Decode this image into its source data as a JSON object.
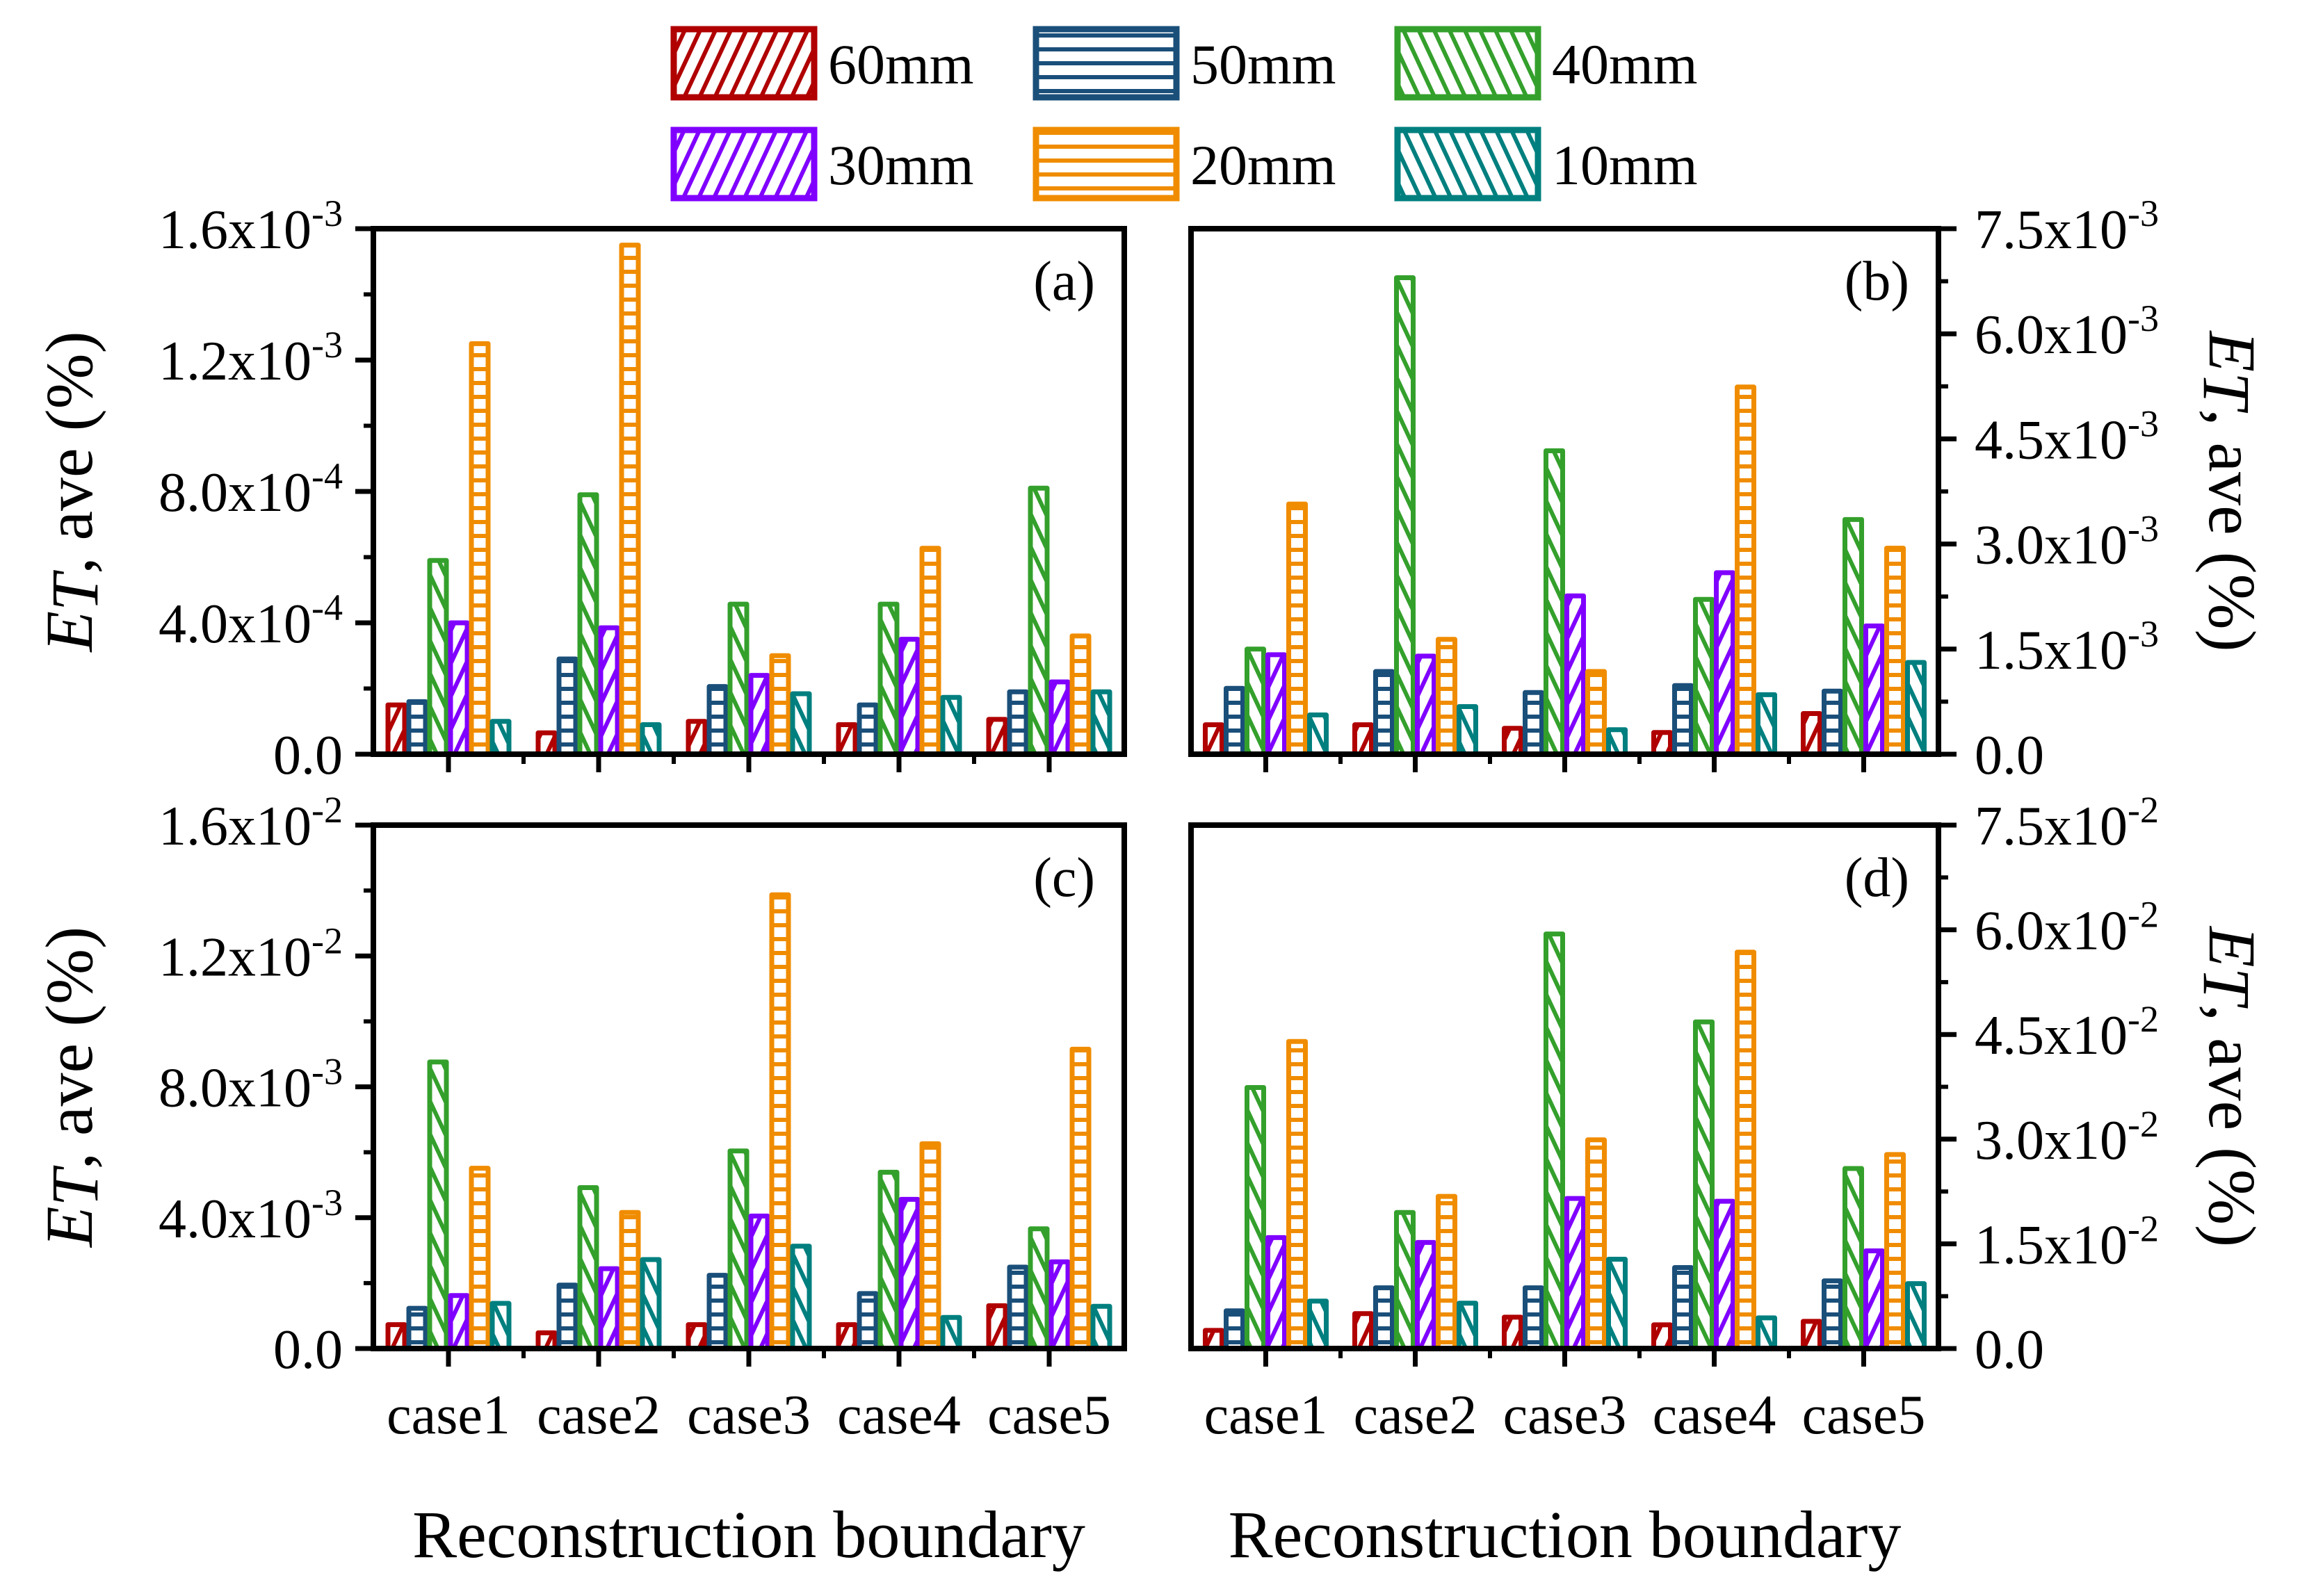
{
  "legend": [
    {
      "label": "60mm",
      "color": "#B00000",
      "pattern": "diag-up"
    },
    {
      "label": "50mm",
      "color": "#1A4F7A",
      "pattern": "horizontal"
    },
    {
      "label": "40mm",
      "color": "#34A02C",
      "pattern": "diag-down"
    },
    {
      "label": "30mm",
      "color": "#8000FF",
      "pattern": "diag-up"
    },
    {
      "label": "20mm",
      "color": "#F08C00",
      "pattern": "horizontal"
    },
    {
      "label": "10mm",
      "color": "#007F7F",
      "pattern": "diag-down"
    }
  ],
  "chart_data": [
    {
      "type": "bar",
      "panel": "(a)",
      "axis_side": "left",
      "categories": [
        "case1",
        "case2",
        "case3",
        "case4",
        "case5"
      ],
      "xlabel": "",
      "ylabel": {
        "e": "E",
        "t": "T",
        "rest": ", ave (%)"
      },
      "ylim": [
        0,
        0.0016
      ],
      "yticks": [
        {
          "value": 0,
          "text": "0.0",
          "exp": ""
        },
        {
          "value": 0.0004,
          "text": "4.0x10",
          "exp": "-4"
        },
        {
          "value": 0.0008,
          "text": "8.0x10",
          "exp": "-4"
        },
        {
          "value": 0.0012,
          "text": "1.2x10",
          "exp": "-3"
        },
        {
          "value": 0.0016,
          "text": "1.6x10",
          "exp": "-3"
        }
      ],
      "series": [
        {
          "name": "60mm",
          "values": [
            0.00015,
            6.5e-05,
            0.0001,
            9e-05,
            0.000106
          ]
        },
        {
          "name": "50mm",
          "values": [
            0.00016,
            0.00029,
            0.000206,
            0.00015,
            0.00019
          ]
        },
        {
          "name": "40mm",
          "values": [
            0.00059,
            0.00079,
            0.000457,
            0.000457,
            0.00081
          ]
        },
        {
          "name": "30mm",
          "values": [
            0.0004,
            0.000385,
            0.00024,
            0.00035,
            0.00022
          ]
        },
        {
          "name": "20mm",
          "values": [
            0.00125,
            0.00155,
            0.0003,
            0.000627,
            0.00036
          ]
        },
        {
          "name": "10mm",
          "values": [
            0.0001,
            9e-05,
            0.000184,
            0.000173,
            0.00019
          ]
        }
      ]
    },
    {
      "type": "bar",
      "panel": "(b)",
      "axis_side": "right",
      "categories": [
        "case1",
        "case2",
        "case3",
        "case4",
        "case5"
      ],
      "xlabel": "",
      "ylabel": {
        "e": "E",
        "t": "T",
        "rest": ", ave (%)"
      },
      "ylim": [
        0,
        0.0075
      ],
      "yticks": [
        {
          "value": 0,
          "text": "0.0",
          "exp": ""
        },
        {
          "value": 0.0015,
          "text": "1.5x10",
          "exp": "-3"
        },
        {
          "value": 0.003,
          "text": "3.0x10",
          "exp": "-3"
        },
        {
          "value": 0.0045,
          "text": "4.5x10",
          "exp": "-3"
        },
        {
          "value": 0.006,
          "text": "6.0x10",
          "exp": "-3"
        },
        {
          "value": 0.0075,
          "text": "7.5x10",
          "exp": "-3"
        }
      ],
      "series": [
        {
          "name": "60mm",
          "values": [
            0.00042,
            0.00042,
            0.00037,
            0.00031,
            0.00058
          ]
        },
        {
          "name": "50mm",
          "values": [
            0.00094,
            0.00118,
            0.00088,
            0.00098,
            0.0009
          ]
        },
        {
          "name": "40mm",
          "values": [
            0.0015,
            0.0068,
            0.00433,
            0.00221,
            0.00335
          ]
        },
        {
          "name": "30mm",
          "values": [
            0.00142,
            0.0014,
            0.00226,
            0.00259,
            0.00183
          ]
        },
        {
          "name": "20mm",
          "values": [
            0.00357,
            0.00164,
            0.00118,
            0.00524,
            0.00294
          ]
        },
        {
          "name": "10mm",
          "values": [
            0.00056,
            0.00068,
            0.00035,
            0.00085,
            0.00131
          ]
        }
      ]
    },
    {
      "type": "bar",
      "panel": "(c)",
      "axis_side": "left",
      "categories": [
        "case1",
        "case2",
        "case3",
        "case4",
        "case5"
      ],
      "xlabel": "Reconstruction boundary",
      "ylabel": {
        "e": "E",
        "t": "T",
        "rest": ", ave (%)"
      },
      "ylim": [
        0,
        0.016
      ],
      "yticks": [
        {
          "value": 0,
          "text": "0.0",
          "exp": ""
        },
        {
          "value": 0.004,
          "text": "4.0x10",
          "exp": "-3"
        },
        {
          "value": 0.008,
          "text": "8.0x10",
          "exp": "-3"
        },
        {
          "value": 0.012,
          "text": "1.2x10",
          "exp": "-2"
        },
        {
          "value": 0.016,
          "text": "1.6x10",
          "exp": "-2"
        }
      ],
      "series": [
        {
          "name": "60mm",
          "values": [
            0.00073,
            0.00048,
            0.00073,
            0.00073,
            0.00131
          ]
        },
        {
          "name": "50mm",
          "values": [
            0.00123,
            0.00194,
            0.00224,
            0.00168,
            0.00249
          ]
        },
        {
          "name": "40mm",
          "values": [
            0.00876,
            0.00492,
            0.00604,
            0.00539,
            0.00366
          ]
        },
        {
          "name": "30mm",
          "values": [
            0.00162,
            0.00244,
            0.00405,
            0.00456,
            0.00265
          ]
        },
        {
          "name": "20mm",
          "values": [
            0.00551,
            0.00416,
            0.01387,
            0.00626,
            0.00915
          ]
        },
        {
          "name": "10mm",
          "values": [
            0.00138,
            0.00272,
            0.00313,
            0.00095,
            0.00129
          ]
        }
      ]
    },
    {
      "type": "bar",
      "panel": "(d)",
      "axis_side": "right",
      "categories": [
        "case1",
        "case2",
        "case3",
        "case4",
        "case5"
      ],
      "xlabel": "Reconstruction boundary",
      "ylabel": {
        "e": "E",
        "t": "T",
        "rest": ", ave (%)"
      },
      "ylim": [
        0,
        0.075
      ],
      "yticks": [
        {
          "value": 0,
          "text": "0.0",
          "exp": ""
        },
        {
          "value": 0.015,
          "text": "1.5x10",
          "exp": "-2"
        },
        {
          "value": 0.03,
          "text": "3.0x10",
          "exp": "-2"
        },
        {
          "value": 0.045,
          "text": "4.5x10",
          "exp": "-2"
        },
        {
          "value": 0.06,
          "text": "6.0x10",
          "exp": "-2"
        },
        {
          "value": 0.075,
          "text": "7.5x10",
          "exp": "-2"
        }
      ],
      "series": [
        {
          "name": "60mm",
          "values": [
            0.0026,
            0.005,
            0.0045,
            0.0034,
            0.0039
          ]
        },
        {
          "name": "50mm",
          "values": [
            0.0054,
            0.0087,
            0.0087,
            0.0116,
            0.0097
          ]
        },
        {
          "name": "40mm",
          "values": [
            0.0374,
            0.0195,
            0.0594,
            0.0468,
            0.0258
          ]
        },
        {
          "name": "30mm",
          "values": [
            0.0159,
            0.0152,
            0.0215,
            0.0211,
            0.014
          ]
        },
        {
          "name": "20mm",
          "values": [
            0.044,
            0.0218,
            0.0299,
            0.0568,
            0.0278
          ]
        },
        {
          "name": "10mm",
          "values": [
            0.0068,
            0.0065,
            0.0128,
            0.0044,
            0.0093
          ]
        }
      ]
    }
  ]
}
